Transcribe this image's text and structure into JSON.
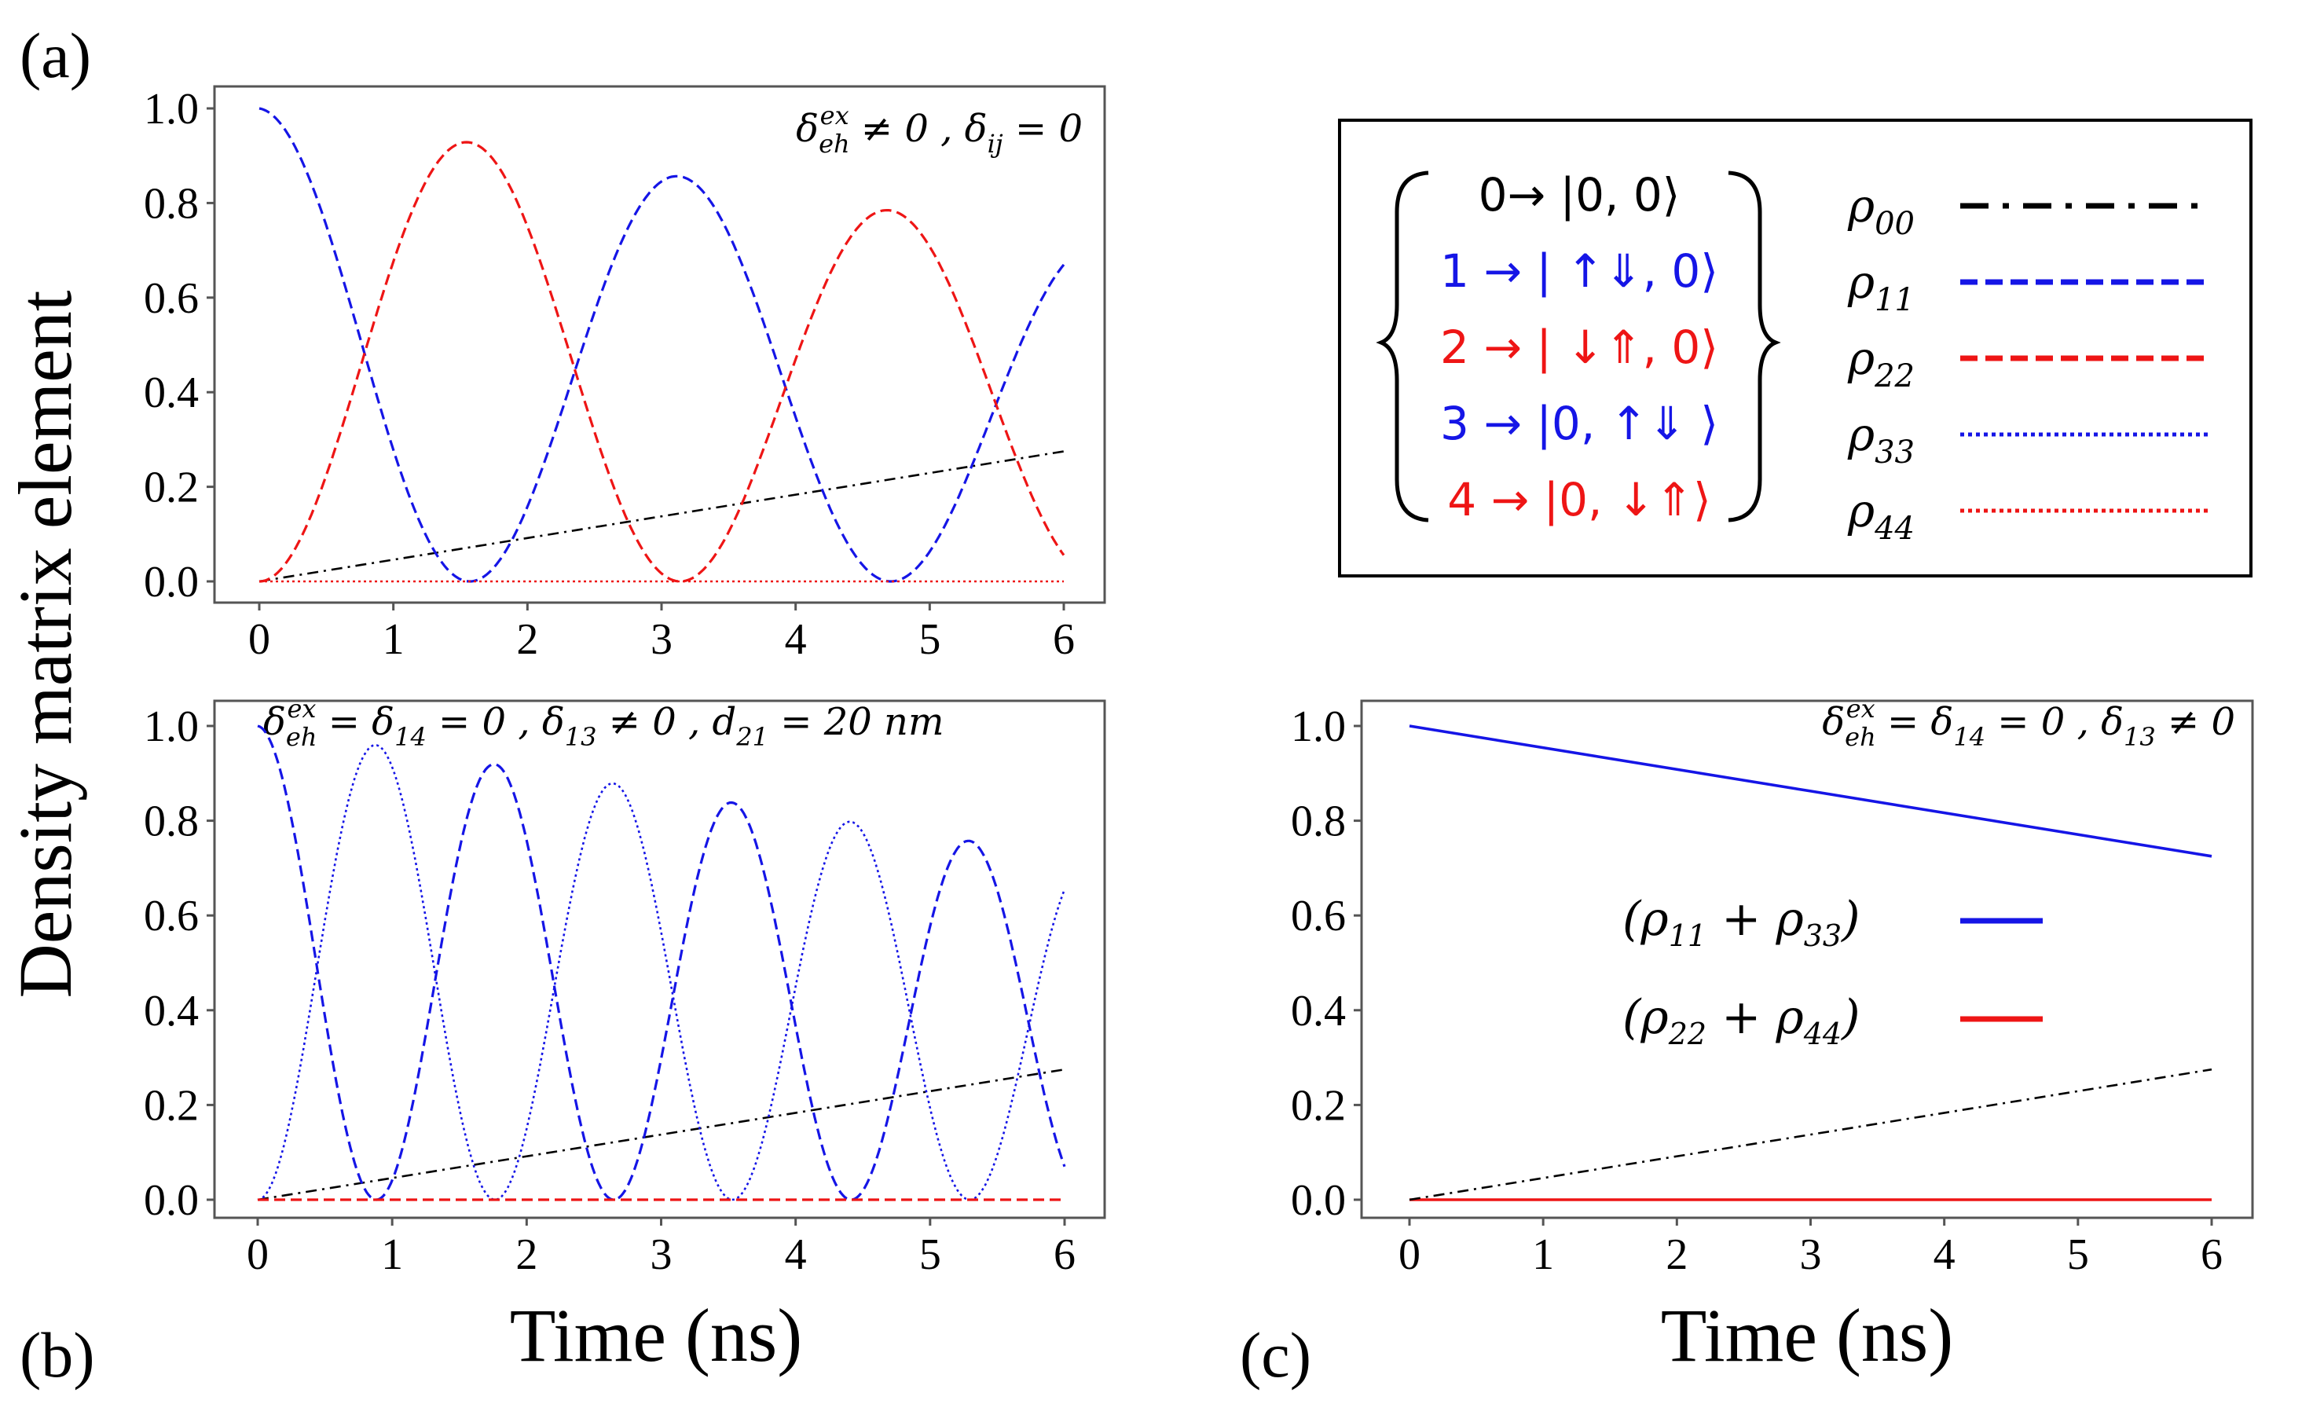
{
  "figure": {
    "ylabel": "Density matrix element",
    "panels": {
      "a": "(a)",
      "b": "(b)",
      "c": "(c)"
    }
  },
  "colors": {
    "black": "#000000",
    "blue": "#1515e6",
    "red": "#ee1515"
  },
  "chart_data": [
    {
      "id": "a",
      "type": "line",
      "annotation": "δ_eh^ex ≠ 0 , δ_ij = 0",
      "xlabel": "",
      "ylabel": "Density matrix element",
      "xlim": [
        0,
        6
      ],
      "ylim": [
        0,
        1
      ],
      "xticks": [
        "0",
        "1",
        "2",
        "3",
        "4",
        "5",
        "6"
      ],
      "yticks": [
        "0.0",
        "0.2",
        "0.4",
        "0.6",
        "0.8",
        "1.0"
      ],
      "series": [
        {
          "name": "ρ00",
          "color": "black",
          "style": "dashdot",
          "model": "linear",
          "start": 0,
          "end": 0.275
        },
        {
          "name": "ρ11",
          "color": "blue",
          "style": "dashed",
          "model": "cos2",
          "period": 3.14,
          "decay": 0.275,
          "phase": "cos"
        },
        {
          "name": "ρ22",
          "color": "red",
          "style": "dashed",
          "model": "cos2",
          "period": 3.14,
          "decay": 0.275,
          "phase": "sin"
        },
        {
          "name": "ρ44",
          "color": "red",
          "style": "dotted",
          "model": "linear",
          "start": 0,
          "end": 0
        }
      ]
    },
    {
      "id": "b",
      "type": "line",
      "annotation": "δ_eh^ex = δ_14 = 0 , δ_13 ≠ 0 , d_21 = 20 nm",
      "xlabel": "Time (ns)",
      "ylabel": "Density matrix element",
      "xlim": [
        0,
        6
      ],
      "ylim": [
        0,
        1
      ],
      "xticks": [
        "0",
        "1",
        "2",
        "3",
        "4",
        "5",
        "6"
      ],
      "yticks": [
        "0.0",
        "0.2",
        "0.4",
        "0.6",
        "0.8",
        "1.0"
      ],
      "series": [
        {
          "name": "ρ00",
          "color": "black",
          "style": "dashdot",
          "model": "linear",
          "start": 0,
          "end": 0.275
        },
        {
          "name": "ρ11",
          "color": "blue",
          "style": "dashed",
          "model": "cos2",
          "period": 1.765,
          "decay": 0.275,
          "phase": "cos"
        },
        {
          "name": "ρ33",
          "color": "blue",
          "style": "dotted",
          "model": "cos2",
          "period": 1.765,
          "decay": 0.275,
          "phase": "sin"
        },
        {
          "name": "ρ22",
          "color": "red",
          "style": "dashed",
          "model": "linear",
          "start": 0,
          "end": 0
        }
      ]
    },
    {
      "id": "c",
      "type": "line",
      "annotation": "δ_eh^ex = δ_14 = 0 , δ_13 ≠ 0",
      "xlabel": "Time (ns)",
      "ylabel": "",
      "xlim": [
        0,
        6
      ],
      "ylim": [
        0,
        1
      ],
      "xticks": [
        "0",
        "1",
        "2",
        "3",
        "4",
        "5",
        "6"
      ],
      "yticks": [
        "0.0",
        "0.2",
        "0.4",
        "0.6",
        "0.8",
        "1.0"
      ],
      "series": [
        {
          "name": "(ρ11 + ρ33)",
          "color": "blue",
          "style": "solid",
          "model": "linear",
          "start": 1.0,
          "end": 0.725
        },
        {
          "name": "(ρ22 + ρ44)",
          "color": "red",
          "style": "solid",
          "model": "linear",
          "start": 0,
          "end": 0
        },
        {
          "name": "ρ00",
          "color": "black",
          "style": "dashdot",
          "model": "linear",
          "start": 0,
          "end": 0.275
        }
      ],
      "legend": [
        {
          "label": "(ρ11 + ρ33)",
          "color": "blue"
        },
        {
          "label": "(ρ22 + ρ44)",
          "color": "red"
        }
      ]
    }
  ],
  "legend_box": {
    "states": [
      {
        "text": "0→ |0, 0⟩",
        "color": "black"
      },
      {
        "text": "1 → | ↑⇓, 0⟩",
        "color": "blue"
      },
      {
        "text": "2 → | ↓⇑, 0⟩",
        "color": "red"
      },
      {
        "text": "3 → |0, ↑⇓ ⟩",
        "color": "blue"
      },
      {
        "text": "4 → |0, ↓⇑⟩",
        "color": "red"
      }
    ],
    "entries": [
      {
        "label": "ρ00",
        "color": "black",
        "style": "dashdot"
      },
      {
        "label": "ρ11",
        "color": "blue",
        "style": "dashed"
      },
      {
        "label": "ρ22",
        "color": "red",
        "style": "dashed"
      },
      {
        "label": "ρ33",
        "color": "blue",
        "style": "dotted"
      },
      {
        "label": "ρ44",
        "color": "red",
        "style": "dotted"
      }
    ]
  }
}
